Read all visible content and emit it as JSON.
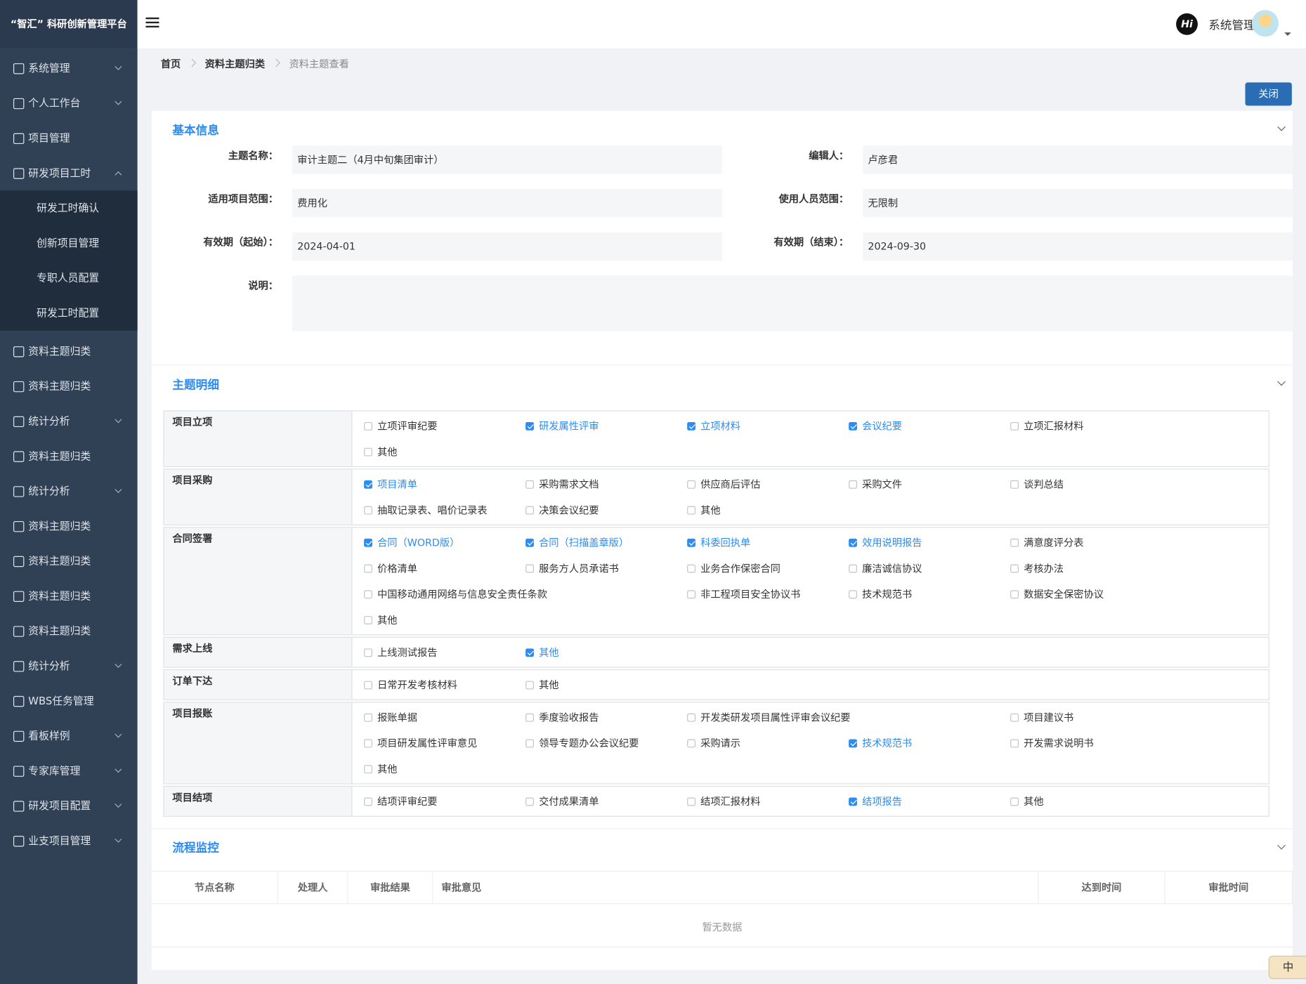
{
  "header": {
    "brand": "“智汇” 科研创新管理平台",
    "badge": "Hi",
    "user": "系统管理"
  },
  "sidebar": {
    "items": [
      {
        "label": "系统管理",
        "expandable": true
      },
      {
        "label": "个人工作台",
        "expandable": true
      },
      {
        "label": "项目管理",
        "expandable": false
      },
      {
        "label": "研发项目工时",
        "expandable": true,
        "expanded": true,
        "children": [
          "研发工时确认",
          "创新项目管理",
          "专职人员配置",
          "研发工时配置"
        ]
      },
      {
        "label": "资料主题归类",
        "expandable": false
      },
      {
        "label": "资料主题归类",
        "expandable": false
      },
      {
        "label": "统计分析",
        "expandable": true
      },
      {
        "label": "资料主题归类",
        "expandable": false
      },
      {
        "label": "统计分析",
        "expandable": true
      },
      {
        "label": "资料主题归类",
        "expandable": false
      },
      {
        "label": "资料主题归类",
        "expandable": false
      },
      {
        "label": "资料主题归类",
        "expandable": false
      },
      {
        "label": "资料主题归类",
        "expandable": false
      },
      {
        "label": "统计分析",
        "expandable": true
      },
      {
        "label": "WBS任务管理",
        "expandable": false
      },
      {
        "label": "看板样例",
        "expandable": true
      },
      {
        "label": "专家库管理",
        "expandable": true
      },
      {
        "label": "研发项目配置",
        "expandable": true
      },
      {
        "label": "业支项目管理",
        "expandable": true
      }
    ]
  },
  "breadcrumb": [
    "首页",
    "资料主题归类",
    "资料主题查看"
  ],
  "toolbar": {
    "close": "关闭"
  },
  "basic_info": {
    "title": "基本信息",
    "fields": [
      {
        "label": "主题名称：",
        "value": "审计主题二（4月中旬集团审计）"
      },
      {
        "label": "编辑人：",
        "value": "卢彦君"
      },
      {
        "label": "适用项目范围：",
        "value": "费用化"
      },
      {
        "label": "使用人员范围：",
        "value": "无限制"
      },
      {
        "label": "有效期（起始）：",
        "value": "2024-04-01"
      },
      {
        "label": "有效期（结束）：",
        "value": "2024-09-30"
      }
    ],
    "note": {
      "label": "说明："
    }
  },
  "detail": {
    "title": "主题明细",
    "groups": [
      {
        "name": "项目立项",
        "options": [
          {
            "label": "立项评审纪要",
            "checked": false
          },
          {
            "label": "研发属性评审",
            "checked": true
          },
          {
            "label": "立项材料",
            "checked": true
          },
          {
            "label": "会议纪要",
            "checked": true
          },
          {
            "label": "立项汇报材料",
            "checked": false
          },
          {
            "label": "其他",
            "checked": false
          }
        ]
      },
      {
        "name": "项目采购",
        "options": [
          {
            "label": "项目清单",
            "checked": true
          },
          {
            "label": "采购需求文档",
            "checked": false
          },
          {
            "label": "供应商后评估",
            "checked": false
          },
          {
            "label": "采购文件",
            "checked": false
          },
          {
            "label": "谈判总结",
            "checked": false
          },
          {
            "label": "抽取记录表、唱价记录表",
            "checked": false
          },
          {
            "label": "决策会议纪要",
            "checked": false
          },
          {
            "label": "其他",
            "checked": false
          }
        ]
      },
      {
        "name": "合同签署",
        "options": [
          {
            "label": "合同（WORD版）",
            "checked": true
          },
          {
            "label": "合同（扫描盖章版）",
            "checked": true
          },
          {
            "label": "科委回执单",
            "checked": true
          },
          {
            "label": "效用说明报告",
            "checked": true
          },
          {
            "label": "满意度评分表",
            "checked": false
          },
          {
            "label": "价格清单",
            "checked": false
          },
          {
            "label": "服务方人员承诺书",
            "checked": false
          },
          {
            "label": "业务合作保密合同",
            "checked": false
          },
          {
            "label": "廉洁诚信协议",
            "checked": false
          },
          {
            "label": "考核办法",
            "checked": false
          },
          {
            "label": "中国移动通用网络与信息安全责任条款",
            "checked": false,
            "span": 2
          },
          {
            "label": "非工程项目安全协议书",
            "checked": false
          },
          {
            "label": "技术规范书",
            "checked": false
          },
          {
            "label": "数据安全保密协议",
            "checked": false
          },
          {
            "label": "其他",
            "checked": false
          }
        ]
      },
      {
        "name": "需求上线",
        "options": [
          {
            "label": "上线测试报告",
            "checked": false
          },
          {
            "label": "其他",
            "checked": true
          }
        ]
      },
      {
        "name": "订单下达",
        "options": [
          {
            "label": "日常开发考核材料",
            "checked": false
          },
          {
            "label": "其他",
            "checked": false
          }
        ]
      },
      {
        "name": "项目报账",
        "options": [
          {
            "label": "报账单据",
            "checked": false
          },
          {
            "label": "季度验收报告",
            "checked": false
          },
          {
            "label": "开发类研发项目属性评审会议纪要",
            "checked": false,
            "span": 2
          },
          {
            "label": "项目建议书",
            "checked": false
          },
          {
            "label": "项目研发属性评审意见",
            "checked": false
          },
          {
            "label": "领导专题办公会议纪要",
            "checked": false
          },
          {
            "label": "采购请示",
            "checked": false
          },
          {
            "label": "技术规范书",
            "checked": true
          },
          {
            "label": "开发需求说明书",
            "checked": false
          },
          {
            "label": "其他",
            "checked": false
          }
        ]
      },
      {
        "name": "项目结项",
        "options": [
          {
            "label": "结项评审纪要",
            "checked": false
          },
          {
            "label": "交付成果清单",
            "checked": false
          },
          {
            "label": "结项汇报材料",
            "checked": false
          },
          {
            "label": "结项报告",
            "checked": true
          },
          {
            "label": "其他",
            "checked": false
          }
        ]
      }
    ]
  },
  "process": {
    "title": "流程监控",
    "columns": [
      "节点名称",
      "处理人",
      "审批结果",
      "审批意见",
      "达到时间",
      "审批时间"
    ],
    "empty": "暂无数据"
  },
  "ime": "中"
}
